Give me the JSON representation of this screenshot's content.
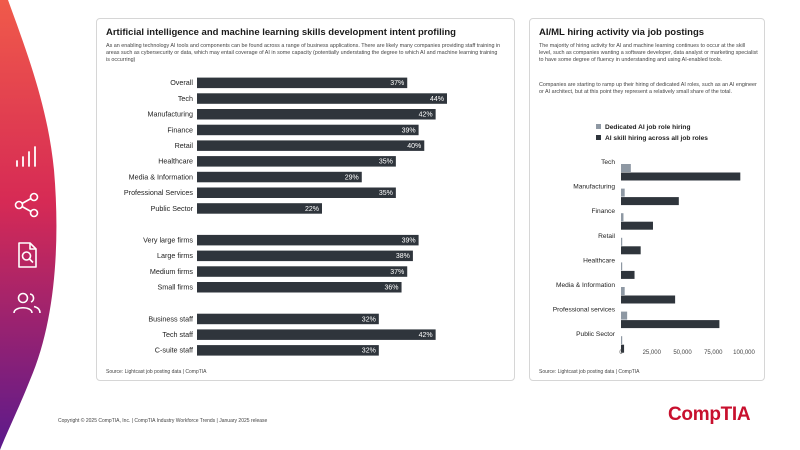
{
  "left": {
    "title": "Artificial intelligence and machine learning skills development intent profiling",
    "description": "As an enabling technology AI tools and components can be found across a range of business applications. There are likely many companies providing staff training in areas such as cybersecurity or data, which may entail coverage of AI in some capacity (potentially understating the degree to which AI and machine learning training is occurring)",
    "source": "Source: Lightcast job posting data | CompTIA"
  },
  "right": {
    "title": "AI/ML hiring activity via job postings",
    "description_1": "The majority of hiring activity for AI and machine learning continues to occur at the skill level, such as companies wanting a software developer, data analyst or marketing specialist to have some degree of fluency in understanding and using AI-enabled tools.",
    "description_2": "Companies are starting to ramp up their hiring of dedicated AI roles, such as an AI engineer or AI architect, but at this point they represent a relatively small share of the total.",
    "source": "Source: Lightcast job posting data | CompTIA"
  },
  "footer": "Copyright © 2025 CompTIA, Inc. | CompTIA Industry Workforce Trends | January 2025 release",
  "logo": "CompTIA",
  "sidebar_icons": [
    "signal-bars-icon",
    "share-icon",
    "document-search-icon",
    "users-icon"
  ],
  "colors": {
    "bar_dark": "#2f353c",
    "bar_light": "#8e98a3",
    "brand_red": "#c8102e",
    "brand_gradient_top": "#e8424a",
    "brand_gradient_bottom": "#5b1a8c"
  },
  "chart_data": [
    {
      "type": "bar",
      "orientation": "horizontal",
      "groups": [
        {
          "categories": [
            "Overall",
            "Tech",
            "Manufacturing",
            "Finance",
            "Retail",
            "Healthcare",
            "Media & Information",
            "Professional Services",
            "Public Sector"
          ],
          "values": [
            37,
            44,
            42,
            39,
            40,
            35,
            29,
            35,
            22
          ]
        },
        {
          "categories": [
            "Very large firms",
            "Large firms",
            "Medium firms",
            "Small firms"
          ],
          "values": [
            39,
            38,
            37,
            36
          ]
        },
        {
          "categories": [
            "Business staff",
            "Tech staff",
            "C-suite staff"
          ],
          "values": [
            32,
            42,
            32
          ]
        }
      ],
      "unit": "%",
      "xlim": [
        0,
        44
      ]
    },
    {
      "type": "bar",
      "orientation": "horizontal",
      "categories": [
        "Tech",
        "Manufacturing",
        "Finance",
        "Retail",
        "Healthcare",
        "Media & Information",
        "Professional services",
        "Public Sector"
      ],
      "series": [
        {
          "name": "Dedicated AI job role hiring",
          "color": "#8e98a3",
          "values": [
            8000,
            3000,
            2000,
            1000,
            500,
            3000,
            5000,
            500
          ]
        },
        {
          "name": "AI skill hiring across all job roles",
          "color": "#2f353c",
          "values": [
            97000,
            47000,
            26000,
            16000,
            11000,
            44000,
            80000,
            2500
          ]
        }
      ],
      "xlim": [
        0,
        100000
      ],
      "xticks": [
        "0",
        "25,000",
        "50,000",
        "75,000",
        "100,000"
      ],
      "legend": "top"
    }
  ]
}
